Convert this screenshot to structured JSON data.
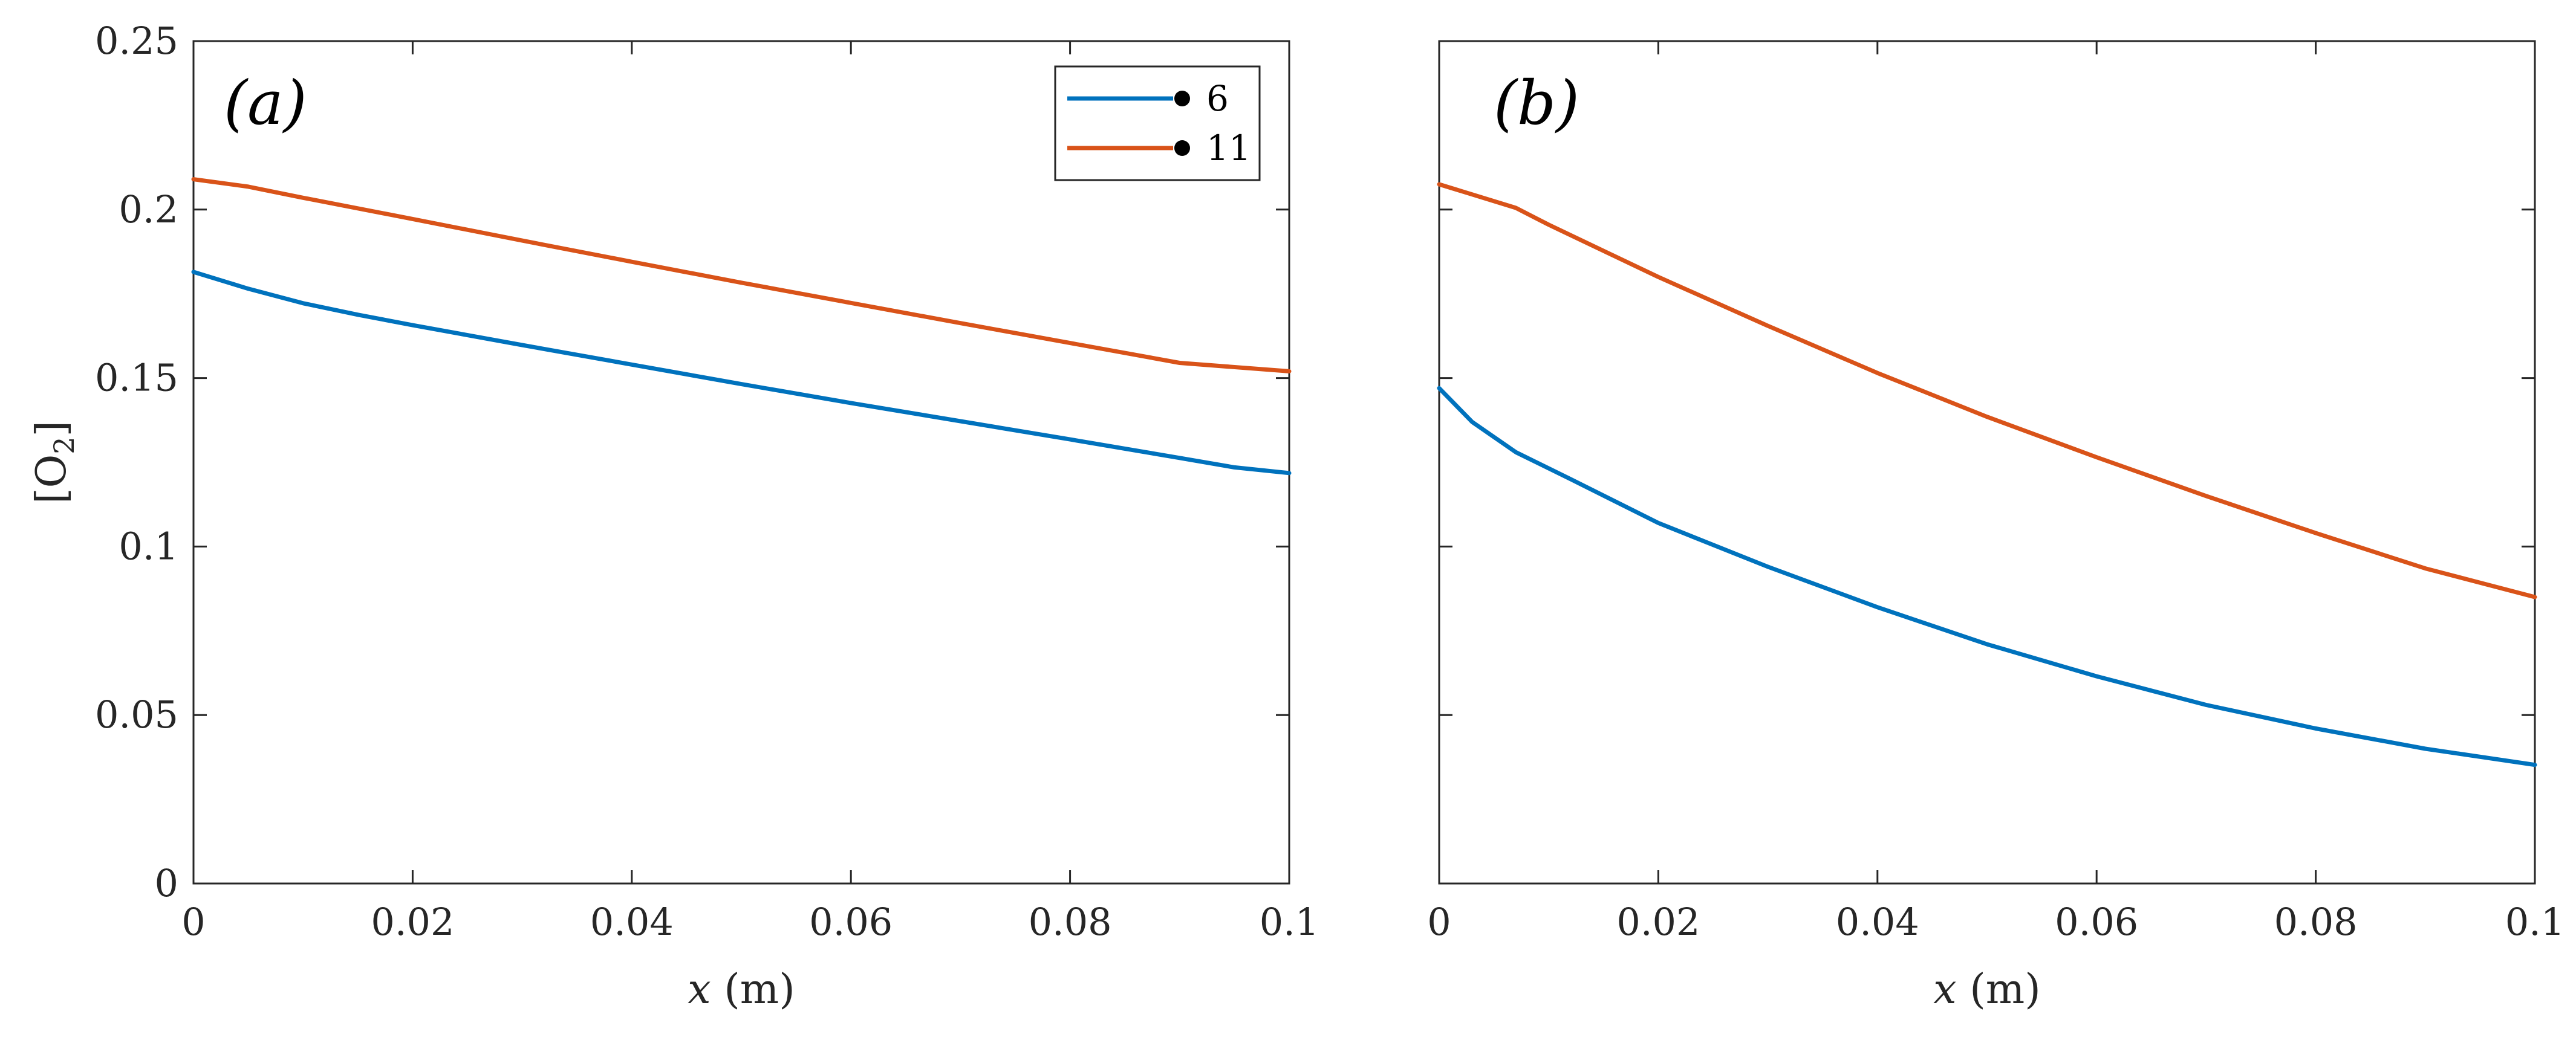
{
  "chart_data": [
    {
      "type": "line",
      "panel_label": "(a)",
      "xlabel_var": "x",
      "xlabel_unit": " (m)",
      "ylabel_main": "[O",
      "ylabel_sub": "2",
      "ylabel_end": "]",
      "xlim": [
        0,
        0.1
      ],
      "ylim": [
        0,
        0.25
      ],
      "xticks": [
        0,
        0.02,
        0.04,
        0.06,
        0.08,
        0.1
      ],
      "xtick_labels": [
        "0",
        "0.02",
        "0.04",
        "0.06",
        "0.08",
        "0.1"
      ],
      "yticks": [
        0,
        0.05,
        0.1,
        0.15,
        0.2,
        0.25
      ],
      "ytick_labels": [
        "0",
        "0.05",
        "0.1",
        "0.15",
        "0.2",
        "0.25"
      ],
      "show_yticklabels": true,
      "legend": {
        "placement": "top-right",
        "entries": [
          "6",
          "11"
        ]
      },
      "series": [
        {
          "name": "6",
          "color": "#0072BD",
          "x": [
            0,
            0.005,
            0.01,
            0.015,
            0.02,
            0.03,
            0.04,
            0.05,
            0.06,
            0.07,
            0.08,
            0.09,
            0.095,
            0.1
          ],
          "y": [
            0.1815,
            0.1765,
            0.1722,
            0.1688,
            0.1657,
            0.1598,
            0.154,
            0.1482,
            0.1426,
            0.1372,
            0.1318,
            0.1263,
            0.1235,
            0.1218
          ]
        },
        {
          "name": "11",
          "color": "#D95319",
          "x": [
            0,
            0.005,
            0.01,
            0.02,
            0.03,
            0.04,
            0.05,
            0.06,
            0.07,
            0.08,
            0.09,
            0.1
          ],
          "y": [
            0.209,
            0.2068,
            0.2035,
            0.1972,
            0.1908,
            0.1845,
            0.1783,
            0.1723,
            0.1663,
            0.1604,
            0.1545,
            0.152
          ]
        }
      ]
    },
    {
      "type": "line",
      "panel_label": "(b)",
      "xlabel_var": "x",
      "xlabel_unit": " (m)",
      "xlim": [
        0,
        0.1
      ],
      "ylim": [
        0,
        0.25
      ],
      "xticks": [
        0,
        0.02,
        0.04,
        0.06,
        0.08,
        0.1
      ],
      "xtick_labels": [
        "0",
        "0.02",
        "0.04",
        "0.06",
        "0.08",
        "0.1"
      ],
      "yticks": [
        0,
        0.05,
        0.1,
        0.15,
        0.2,
        0.25
      ],
      "ytick_labels": [
        "0",
        "0.05",
        "0.1",
        "0.15",
        "0.2",
        "0.25"
      ],
      "show_yticklabels": false,
      "series": [
        {
          "name": "6",
          "color": "#0072BD",
          "x": [
            0,
            0.003,
            0.007,
            0.012,
            0.02,
            0.03,
            0.04,
            0.05,
            0.06,
            0.07,
            0.08,
            0.09,
            0.1
          ],
          "y": [
            0.147,
            0.137,
            0.128,
            0.12,
            0.107,
            0.094,
            0.082,
            0.071,
            0.0615,
            0.053,
            0.046,
            0.04,
            0.0352
          ]
        },
        {
          "name": "11",
          "color": "#D95319",
          "x": [
            0,
            0.007,
            0.01,
            0.02,
            0.03,
            0.04,
            0.05,
            0.06,
            0.07,
            0.08,
            0.09,
            0.1
          ],
          "y": [
            0.2075,
            0.2005,
            0.1955,
            0.18,
            0.1655,
            0.1515,
            0.1385,
            0.1265,
            0.115,
            0.104,
            0.0935,
            0.085
          ]
        }
      ]
    }
  ]
}
